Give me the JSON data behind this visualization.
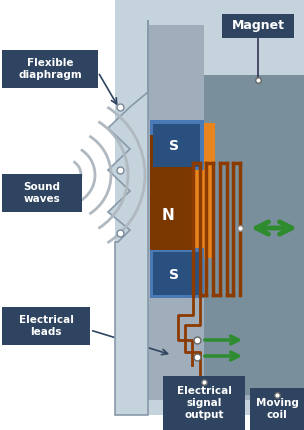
{
  "bg_color": "#ffffff",
  "label_fc": "#2e4460",
  "label_tc": "#ffffff",
  "colors": {
    "light_gray_bg": "#c5d3dc",
    "medium_gray_bg": "#9faeba",
    "dark_gray_bg": "#7a8f9c",
    "orange_magnet": "#e8851e",
    "n_pole_dark": "#7a3800",
    "blue_magnet_outer": "#4a7ab5",
    "blue_magnet_inner": "#2a5080",
    "coil_brown": "#8b3a00",
    "green_arrow": "#2e8b2e",
    "wave_color": "#b0b8c0",
    "dot_white": "#ffffff",
    "dot_edge": "#7a8898",
    "diaphragm_edge": "#8899aa"
  },
  "labels": {
    "magnet": "Magnet",
    "flexible_diaphragm": "Flexible\ndiaphragm",
    "sound_waves": "Sound\nwaves",
    "electrical_leads": "Electrical\nleads",
    "electrical_signal_output": "Electrical\nsignal\noutput",
    "moving_coil": "Moving\ncoil",
    "N": "N",
    "S_top": "S",
    "S_bot": "S"
  }
}
